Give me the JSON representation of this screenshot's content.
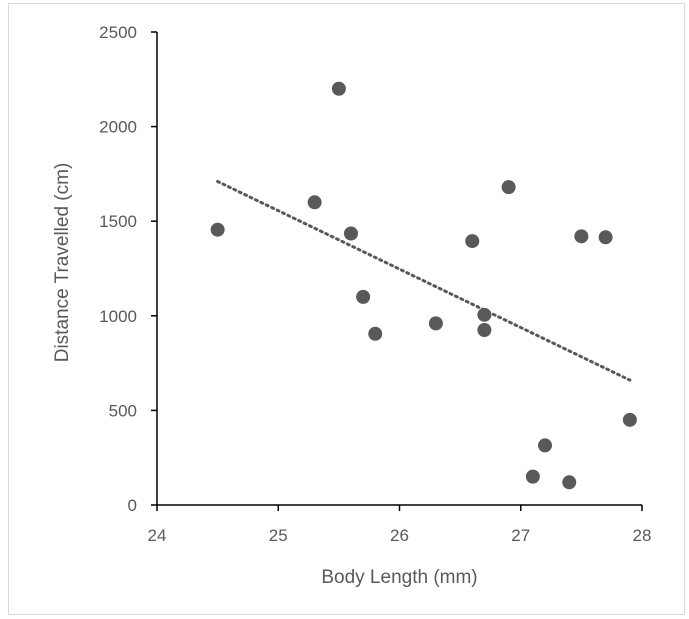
{
  "chart_data": {
    "type": "scatter",
    "title": "",
    "xlabel": "Body Length (mm)",
    "ylabel": "Distance Travelled (cm)",
    "xlim": [
      24,
      28
    ],
    "ylim": [
      0,
      2500
    ],
    "x_ticks": [
      "24",
      "25",
      "26",
      "27",
      "28"
    ],
    "y_ticks": [
      "0",
      "500",
      "1000",
      "1500",
      "2000",
      "2500"
    ],
    "grid": false,
    "legend": "none",
    "marker_color": "#595959",
    "trendline": {
      "type": "linear",
      "style": "dotted",
      "color": "#595959",
      "x_range": [
        24.5,
        27.9
      ],
      "y_at_start": 1710,
      "y_at_end": 660
    },
    "points": [
      {
        "x": 24.5,
        "y": 1455
      },
      {
        "x": 25.3,
        "y": 1600
      },
      {
        "x": 25.5,
        "y": 2200
      },
      {
        "x": 25.6,
        "y": 1435
      },
      {
        "x": 25.7,
        "y": 1100
      },
      {
        "x": 25.8,
        "y": 905
      },
      {
        "x": 26.3,
        "y": 960
      },
      {
        "x": 26.6,
        "y": 1395
      },
      {
        "x": 26.7,
        "y": 1005
      },
      {
        "x": 26.7,
        "y": 925
      },
      {
        "x": 26.9,
        "y": 1680
      },
      {
        "x": 27.1,
        "y": 150
      },
      {
        "x": 27.2,
        "y": 315
      },
      {
        "x": 27.4,
        "y": 120
      },
      {
        "x": 27.5,
        "y": 1420
      },
      {
        "x": 27.7,
        "y": 1415
      },
      {
        "x": 27.9,
        "y": 450
      }
    ]
  }
}
